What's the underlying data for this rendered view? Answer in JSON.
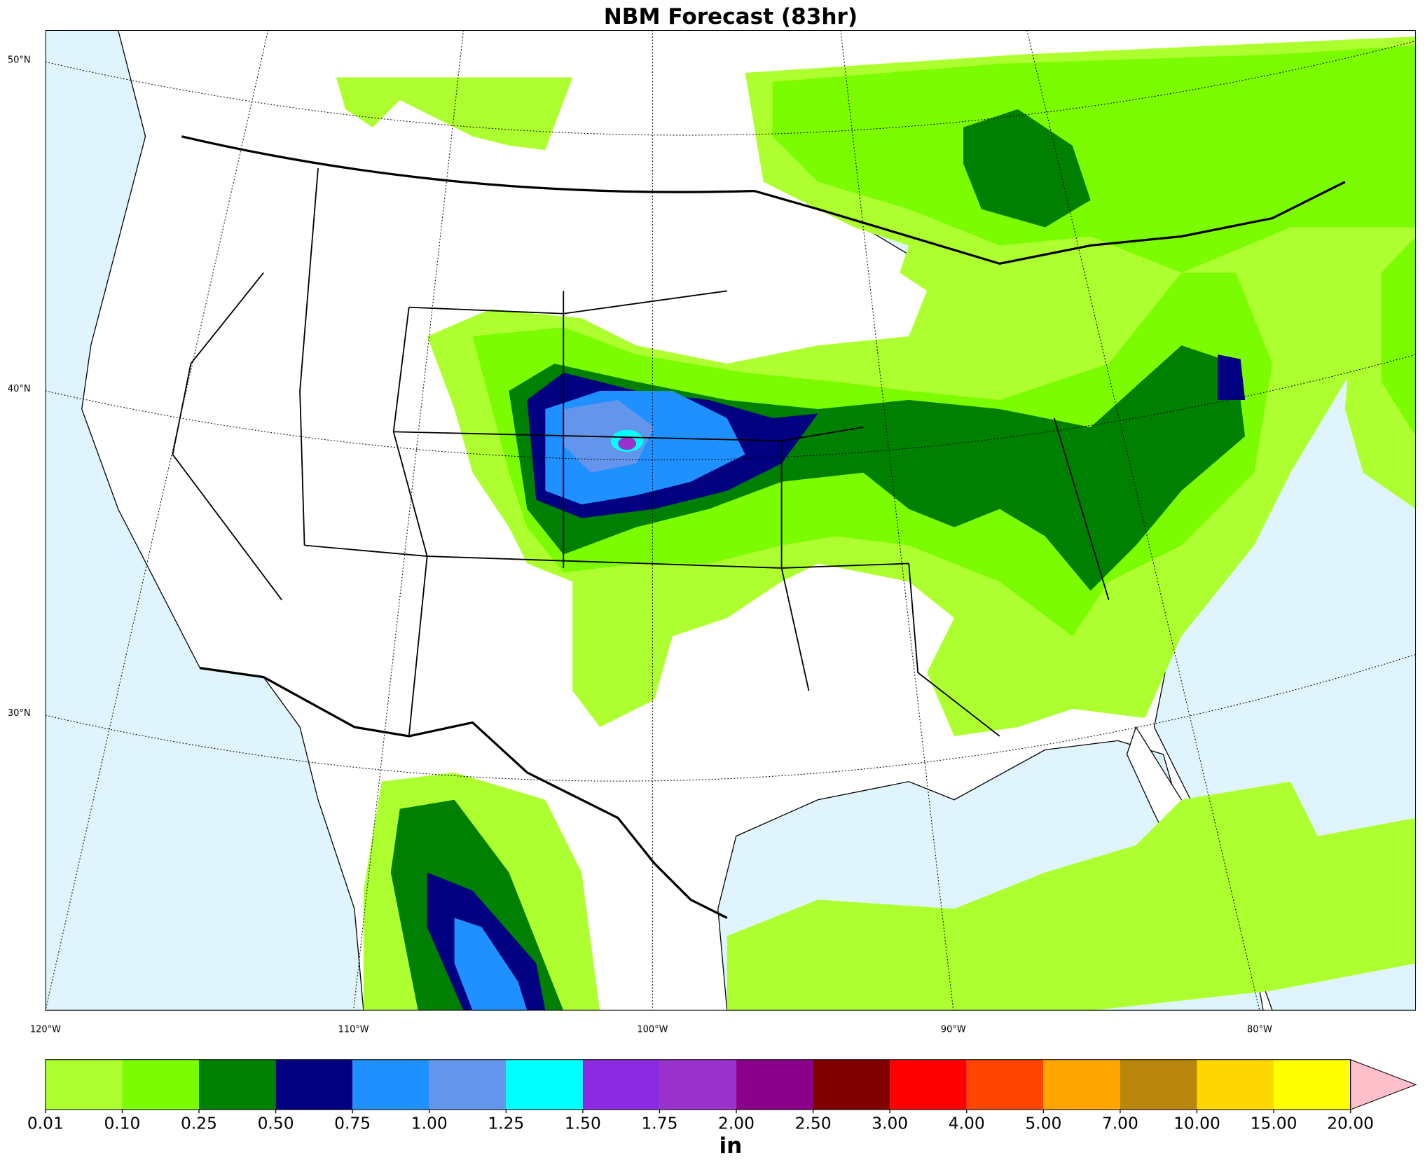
{
  "title": "NBM Forecast (83hr)",
  "latitude_labels": [
    "50°N",
    "40°N",
    "30°N"
  ],
  "longitude_labels": [
    "120°W",
    "110°W",
    "100°W",
    "90°W",
    "80°W"
  ],
  "colorbar": {
    "levels": [
      0.01,
      {
        "value": 0.1,
        "label": "0.10"
      },
      0.25,
      {
        "value": 0.5,
        "label": "0.50"
      },
      0.75,
      {
        "value": 1,
        "label": "1.00"
      },
      1.25,
      {
        "value": 1.5,
        "label": "1.50"
      },
      1.75,
      {
        "value": 2,
        "label": "2.00"
      },
      {
        "value": 2.5,
        "label": "2.50"
      },
      {
        "value": 3,
        "label": "3.00"
      },
      {
        "value": 4,
        "label": "4.00"
      },
      {
        "value": 5,
        "label": "5.00"
      },
      {
        "value": 7,
        "label": "7.00"
      },
      {
        "value": 10,
        "label": "10.00"
      },
      {
        "value": 15,
        "label": "15.00"
      },
      {
        "value": 20,
        "label": "20.00"
      }
    ],
    "colors": [
      "#adff2f",
      "#7cfc00",
      "#008000",
      "#000080",
      "#1e90ff",
      "#6495ed",
      "#00ffff",
      "#8a2be2",
      "#9932cc",
      "#8b008b",
      "#800000",
      "#ff0000",
      "#ff4500",
      "#ffa500",
      "#b8860b",
      "#ffd700",
      "#ffff00"
    ],
    "extend_color": "#ffc0cb",
    "unit": "in"
  }
}
